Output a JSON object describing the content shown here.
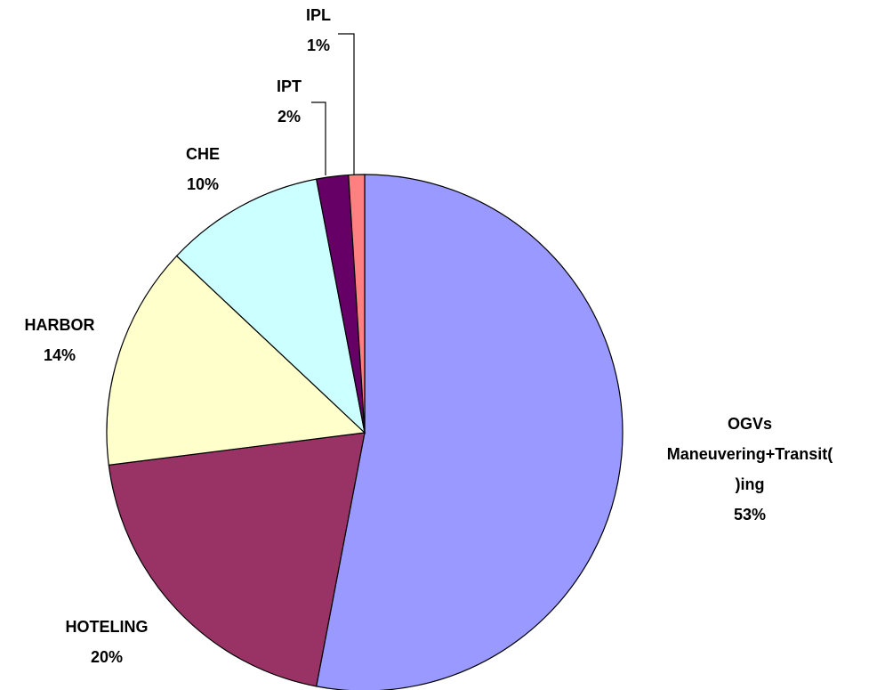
{
  "chart_data": {
    "type": "pie",
    "categories": [
      "OGVs\nManeuvering+Transit(\n)ing",
      "HOTELING",
      "HARBOR",
      "CHE",
      "IPT",
      "IPL"
    ],
    "values": [
      53,
      20,
      14,
      10,
      2,
      1
    ],
    "value_labels": [
      "53%",
      "20%",
      "14%",
      "10%",
      "2%",
      "1%"
    ],
    "colors": [
      "#9999ff",
      "#993366",
      "#ffffcc",
      "#ccffff",
      "#660066",
      "#ff8080"
    ]
  }
}
